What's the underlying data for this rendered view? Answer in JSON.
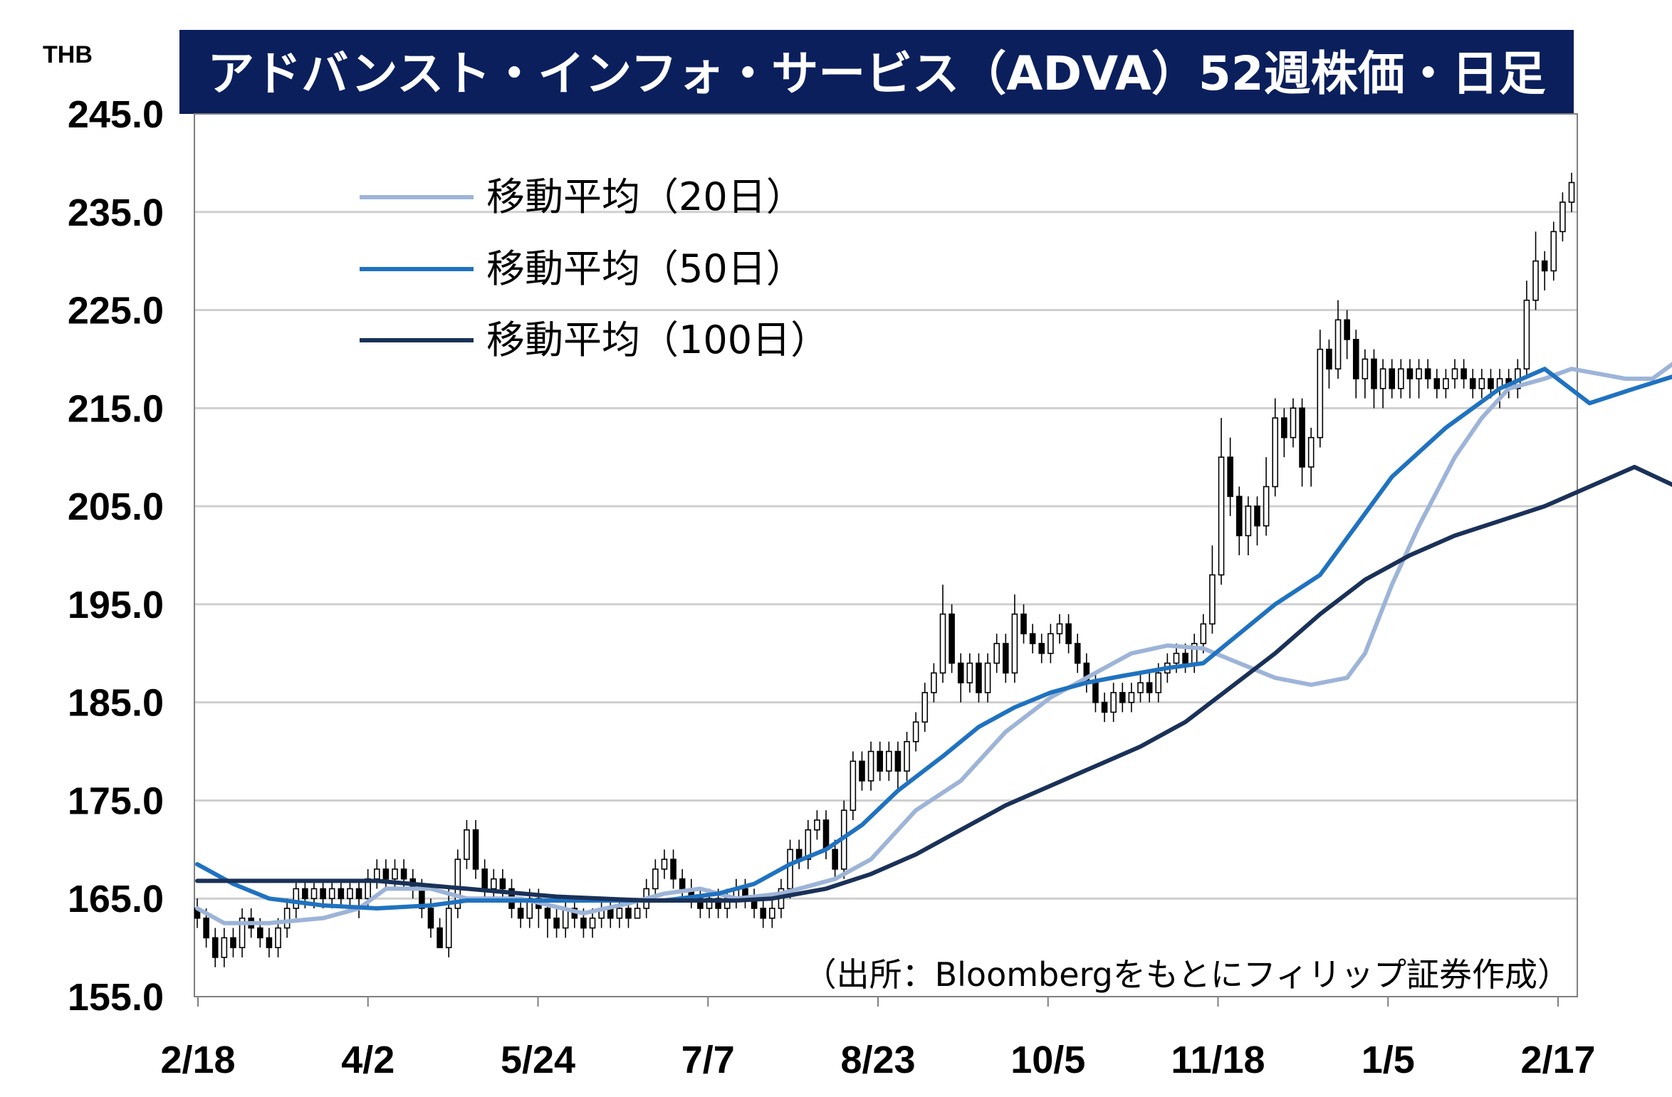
{
  "chart_data": {
    "type": "candlestick",
    "title": "アドバンスト・インフォ・サービス（ADVA）52週株価・日足",
    "unit": "THB",
    "source": "（出所：Bloombergをもとにフィリップ証券作成）",
    "ylim": [
      155,
      245
    ],
    "y_ticks": [
      "245.0",
      "235.0",
      "225.0",
      "215.0",
      "205.0",
      "195.0",
      "185.0",
      "175.0",
      "165.0",
      "155.0"
    ],
    "x_ticks": [
      "2/18",
      "4/2",
      "5/24",
      "7/7",
      "8/23",
      "10/5",
      "11/18",
      "1/5",
      "2/17"
    ],
    "grid": true,
    "legend_position": "top-left",
    "colors": {
      "title_bg": "#0a1f5c",
      "ma20": "#9db4d8",
      "ma50": "#1f72c0",
      "ma100": "#1a3158",
      "grid": "#cfcfcf",
      "candle_up": "#ffffff",
      "candle_down": "#000000"
    },
    "series": [
      {
        "name": "移動平均（20日）",
        "color_key": "ma20",
        "points": [
          [
            0,
            164
          ],
          [
            3,
            162.5
          ],
          [
            8,
            162.5
          ],
          [
            14,
            163
          ],
          [
            18,
            164
          ],
          [
            21,
            166
          ],
          [
            26,
            166
          ],
          [
            30,
            165
          ],
          [
            36,
            165
          ],
          [
            43,
            163.5
          ],
          [
            48,
            164.5
          ],
          [
            52,
            165.5
          ],
          [
            56,
            166
          ],
          [
            60,
            165
          ],
          [
            65,
            165.5
          ],
          [
            71,
            167
          ],
          [
            75,
            169
          ],
          [
            80,
            174
          ],
          [
            85,
            177
          ],
          [
            90,
            182
          ],
          [
            95,
            185.5
          ],
          [
            100,
            188
          ],
          [
            104,
            190
          ],
          [
            108,
            190.8
          ],
          [
            112,
            190.5
          ],
          [
            116,
            189
          ],
          [
            120,
            187.5
          ],
          [
            124,
            186.8
          ],
          [
            128,
            187.5
          ],
          [
            130,
            190
          ],
          [
            133,
            197
          ],
          [
            136,
            203
          ],
          [
            140,
            210
          ],
          [
            143,
            214
          ],
          [
            146,
            217
          ],
          [
            150,
            218
          ],
          [
            153,
            219
          ],
          [
            156,
            218.5
          ],
          [
            159,
            218
          ],
          [
            162,
            218
          ],
          [
            165,
            220
          ],
          [
            167,
            222.5
          ]
        ]
      },
      {
        "name": "移動平均（50日）",
        "color_key": "ma50",
        "points": [
          [
            0,
            168.5
          ],
          [
            4,
            166.5
          ],
          [
            8,
            165
          ],
          [
            14,
            164.3
          ],
          [
            20,
            164
          ],
          [
            26,
            164.3
          ],
          [
            30,
            164.8
          ],
          [
            36,
            164.8
          ],
          [
            45,
            164.8
          ],
          [
            52,
            164.8
          ],
          [
            58,
            165.5
          ],
          [
            62,
            166.5
          ],
          [
            66,
            168.5
          ],
          [
            70,
            170
          ],
          [
            74,
            172.5
          ],
          [
            78,
            176
          ],
          [
            83,
            179.5
          ],
          [
            87,
            182.5
          ],
          [
            91,
            184.5
          ],
          [
            95,
            186
          ],
          [
            99,
            187
          ],
          [
            103,
            187.7
          ],
          [
            108,
            188.5
          ],
          [
            112,
            189
          ],
          [
            116,
            192
          ],
          [
            120,
            195
          ],
          [
            125,
            198
          ],
          [
            129,
            203
          ],
          [
            133,
            208
          ],
          [
            139,
            213
          ],
          [
            145,
            217
          ],
          [
            150,
            219
          ],
          [
            155,
            215.5
          ],
          [
            160,
            217
          ],
          [
            167,
            219
          ]
        ]
      },
      {
        "name": "移動平均（100日）",
        "color_key": "ma100",
        "points": [
          [
            0,
            166.8
          ],
          [
            10,
            166.8
          ],
          [
            20,
            166.8
          ],
          [
            30,
            166
          ],
          [
            40,
            165.2
          ],
          [
            50,
            164.8
          ],
          [
            60,
            164.8
          ],
          [
            64,
            165
          ],
          [
            70,
            166
          ],
          [
            75,
            167.5
          ],
          [
            80,
            169.5
          ],
          [
            85,
            172
          ],
          [
            90,
            174.5
          ],
          [
            95,
            176.5
          ],
          [
            100,
            178.5
          ],
          [
            105,
            180.5
          ],
          [
            110,
            183
          ],
          [
            115,
            186.5
          ],
          [
            120,
            190
          ],
          [
            125,
            194
          ],
          [
            130,
            197.5
          ],
          [
            135,
            200
          ],
          [
            140,
            202
          ],
          [
            145,
            203.5
          ],
          [
            150,
            205
          ],
          [
            155,
            207
          ],
          [
            160,
            209
          ],
          [
            167,
            206
          ]
        ]
      }
    ],
    "legend": {
      "ma20": "移動平均（20日）",
      "ma50": "移動平均（50日）",
      "ma100": "移動平均（100日）"
    },
    "candles": [
      [
        0,
        164,
        163,
        165,
        162
      ],
      [
        1,
        163,
        161,
        164,
        160
      ],
      [
        2,
        161,
        159,
        162,
        158
      ],
      [
        3,
        159,
        161,
        162,
        158
      ],
      [
        4,
        161,
        160,
        162,
        159
      ],
      [
        5,
        160,
        163,
        164,
        159
      ],
      [
        6,
        163,
        162,
        164,
        161
      ],
      [
        7,
        162,
        161,
        163,
        160
      ],
      [
        8,
        161,
        160,
        162,
        159
      ],
      [
        9,
        160,
        162,
        163,
        159
      ],
      [
        10,
        162,
        164,
        165,
        161
      ],
      [
        11,
        164,
        166,
        167,
        163
      ],
      [
        12,
        166,
        165,
        167,
        164
      ],
      [
        13,
        165,
        166,
        167,
        164
      ],
      [
        14,
        166,
        165,
        167,
        164
      ],
      [
        15,
        165,
        166,
        167,
        164
      ],
      [
        16,
        166,
        165,
        167,
        164
      ],
      [
        17,
        165,
        166,
        167,
        164
      ],
      [
        18,
        166,
        165,
        167,
        163
      ],
      [
        19,
        165,
        167,
        168,
        164
      ],
      [
        20,
        167,
        168,
        169,
        166
      ],
      [
        21,
        168,
        167,
        169,
        166
      ],
      [
        22,
        167,
        168,
        169,
        166
      ],
      [
        23,
        168,
        167,
        169,
        166
      ],
      [
        24,
        167,
        166,
        168,
        165
      ],
      [
        25,
        166,
        164,
        167,
        163
      ],
      [
        26,
        164,
        162,
        165,
        161
      ],
      [
        27,
        162,
        160,
        163,
        160
      ],
      [
        28,
        160,
        164,
        166,
        159
      ],
      [
        29,
        164,
        169,
        170,
        163
      ],
      [
        30,
        169,
        172,
        173,
        168
      ],
      [
        31,
        172,
        168,
        173,
        167
      ],
      [
        32,
        168,
        166,
        169,
        165
      ],
      [
        33,
        166,
        167,
        168,
        165
      ],
      [
        34,
        167,
        166,
        168,
        165
      ],
      [
        35,
        166,
        164,
        167,
        163
      ],
      [
        36,
        164,
        163,
        165,
        162
      ],
      [
        37,
        163,
        165,
        166,
        162
      ],
      [
        38,
        165,
        164,
        166,
        162
      ],
      [
        39,
        164,
        163,
        165,
        161
      ],
      [
        40,
        163,
        162,
        164,
        161
      ],
      [
        41,
        162,
        164,
        165,
        161
      ],
      [
        42,
        164,
        163,
        165,
        162
      ],
      [
        43,
        163,
        162,
        164,
        161
      ],
      [
        44,
        162,
        163,
        164,
        161
      ],
      [
        45,
        163,
        164,
        165,
        162
      ],
      [
        46,
        164,
        163,
        165,
        162
      ],
      [
        47,
        163,
        164,
        165,
        162
      ],
      [
        48,
        164,
        163,
        165,
        162
      ],
      [
        49,
        163,
        164,
        165,
        163
      ],
      [
        50,
        164,
        166,
        167,
        163
      ],
      [
        51,
        166,
        168,
        169,
        165
      ],
      [
        52,
        168,
        169,
        170,
        167
      ],
      [
        53,
        169,
        167,
        170,
        166
      ],
      [
        54,
        167,
        166,
        168,
        165
      ],
      [
        55,
        166,
        165,
        167,
        164
      ],
      [
        56,
        165,
        164,
        166,
        163
      ],
      [
        57,
        164,
        165,
        166,
        163
      ],
      [
        58,
        165,
        164,
        166,
        163
      ],
      [
        59,
        164,
        165,
        166,
        163
      ],
      [
        60,
        165,
        166,
        167,
        164
      ],
      [
        61,
        166,
        165,
        167,
        164
      ],
      [
        62,
        165,
        164,
        166,
        163
      ],
      [
        63,
        164,
        163,
        165,
        162
      ],
      [
        64,
        163,
        164,
        165,
        162
      ],
      [
        65,
        164,
        166,
        167,
        163
      ],
      [
        66,
        166,
        170,
        171,
        165
      ],
      [
        67,
        170,
        169,
        171,
        168
      ],
      [
        68,
        169,
        172,
        173,
        168
      ],
      [
        69,
        172,
        173,
        174,
        171
      ],
      [
        70,
        173,
        170,
        174,
        169
      ],
      [
        71,
        170,
        168,
        171,
        167
      ],
      [
        72,
        168,
        174,
        175,
        167
      ],
      [
        73,
        174,
        179,
        180,
        173
      ],
      [
        74,
        179,
        177,
        180,
        176
      ],
      [
        75,
        177,
        180,
        181,
        176
      ],
      [
        76,
        180,
        178,
        181,
        177
      ],
      [
        77,
        178,
        180,
        181,
        177
      ],
      [
        78,
        180,
        178,
        181,
        176
      ],
      [
        79,
        178,
        181,
        182,
        177
      ],
      [
        80,
        181,
        183,
        184,
        180
      ],
      [
        81,
        183,
        186,
        187,
        182
      ],
      [
        82,
        186,
        188,
        189,
        185
      ],
      [
        83,
        188,
        194,
        197,
        187
      ],
      [
        84,
        194,
        189,
        195,
        188
      ],
      [
        85,
        189,
        187,
        190,
        185
      ],
      [
        86,
        187,
        189,
        190,
        186
      ],
      [
        87,
        189,
        186,
        190,
        185
      ],
      [
        88,
        186,
        189,
        190,
        185
      ],
      [
        89,
        189,
        191,
        192,
        188
      ],
      [
        90,
        191,
        188,
        192,
        187
      ],
      [
        91,
        188,
        194,
        196,
        187
      ],
      [
        92,
        194,
        192,
        195,
        191
      ],
      [
        93,
        192,
        191,
        193,
        190
      ],
      [
        94,
        191,
        190,
        192,
        189
      ],
      [
        95,
        190,
        192,
        193,
        189
      ],
      [
        96,
        192,
        193,
        194,
        191
      ],
      [
        97,
        193,
        191,
        194,
        190
      ],
      [
        98,
        191,
        189,
        192,
        188
      ],
      [
        99,
        189,
        187,
        190,
        186
      ],
      [
        100,
        187,
        185,
        188,
        184
      ],
      [
        101,
        185,
        184,
        186,
        183
      ],
      [
        102,
        184,
        186,
        187,
        183
      ],
      [
        103,
        186,
        185,
        187,
        184
      ],
      [
        104,
        185,
        186,
        187,
        184
      ],
      [
        105,
        186,
        187,
        188,
        185
      ],
      [
        106,
        187,
        186,
        188,
        185
      ],
      [
        107,
        186,
        188,
        189,
        185
      ],
      [
        108,
        188,
        189,
        190,
        187
      ],
      [
        109,
        189,
        190,
        191,
        188
      ],
      [
        110,
        190,
        189,
        191,
        188
      ],
      [
        111,
        189,
        191,
        192,
        188
      ],
      [
        112,
        191,
        193,
        194,
        190
      ],
      [
        113,
        193,
        198,
        201,
        192
      ],
      [
        114,
        198,
        210,
        214,
        197
      ],
      [
        115,
        210,
        206,
        212,
        204
      ],
      [
        116,
        206,
        202,
        207,
        200
      ],
      [
        117,
        202,
        205,
        206,
        200
      ],
      [
        118,
        205,
        203,
        206,
        201
      ],
      [
        119,
        203,
        207,
        210,
        202
      ],
      [
        120,
        207,
        214,
        216,
        206
      ],
      [
        121,
        214,
        212,
        215,
        210
      ],
      [
        122,
        212,
        215,
        216,
        211
      ],
      [
        123,
        215,
        209,
        216,
        207
      ],
      [
        124,
        209,
        212,
        213,
        207
      ],
      [
        125,
        212,
        221,
        223,
        211
      ],
      [
        126,
        221,
        219,
        222,
        217
      ],
      [
        127,
        219,
        224,
        226,
        218
      ],
      [
        128,
        224,
        222,
        225,
        220
      ],
      [
        129,
        222,
        218,
        223,
        216
      ],
      [
        130,
        218,
        220,
        221,
        216
      ],
      [
        131,
        220,
        217,
        221,
        215
      ],
      [
        132,
        217,
        219,
        220,
        215
      ],
      [
        133,
        219,
        217,
        220,
        216
      ],
      [
        134,
        217,
        219,
        220,
        216
      ],
      [
        135,
        219,
        218,
        220,
        216
      ],
      [
        136,
        218,
        219,
        220,
        216
      ],
      [
        137,
        219,
        218,
        220,
        217
      ],
      [
        138,
        218,
        217,
        219,
        216
      ],
      [
        139,
        217,
        218,
        219,
        216
      ],
      [
        140,
        218,
        219,
        220,
        217
      ],
      [
        141,
        219,
        218,
        220,
        217
      ],
      [
        142,
        218,
        217,
        219,
        216
      ],
      [
        143,
        217,
        218,
        219,
        216
      ],
      [
        144,
        218,
        217,
        219,
        216
      ],
      [
        145,
        217,
        218,
        219,
        215
      ],
      [
        146,
        218,
        217,
        219,
        216
      ],
      [
        147,
        217,
        219,
        220,
        216
      ],
      [
        148,
        219,
        226,
        228,
        218
      ],
      [
        149,
        226,
        230,
        233,
        225
      ],
      [
        150,
        230,
        229,
        231,
        227
      ],
      [
        151,
        229,
        233,
        234,
        228
      ],
      [
        152,
        233,
        236,
        237,
        232
      ],
      [
        153,
        236,
        238,
        239,
        235
      ]
    ]
  }
}
